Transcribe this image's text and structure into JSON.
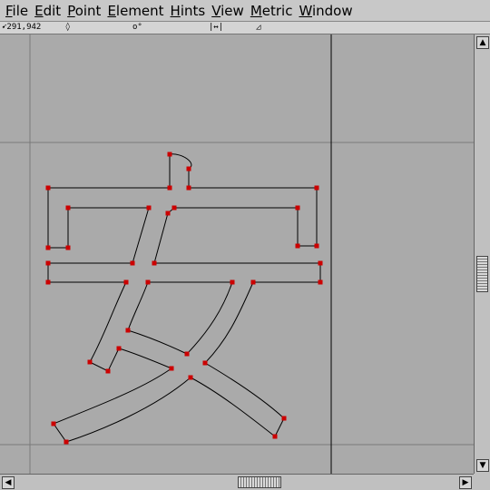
{
  "menubar": {
    "items": [
      {
        "u": "F",
        "rest": "ile"
      },
      {
        "u": "E",
        "rest": "dit"
      },
      {
        "u": "P",
        "rest": "oint"
      },
      {
        "u": "E",
        "rest": "lement"
      },
      {
        "u": "H",
        "rest": "ints"
      },
      {
        "u": "V",
        "rest": "iew"
      },
      {
        "u": "M",
        "rest": "etric"
      },
      {
        "u": "W",
        "rest": "indow"
      }
    ]
  },
  "infobar": {
    "coords": "291,942",
    "symbol_point": "◊",
    "symbol_origin": "o°",
    "symbol_distance": "|↔|",
    "symbol_angle": "◿"
  },
  "colors": {
    "canvas_bg": "#aaaaaa",
    "outline": "#000000",
    "point": "#cc0000",
    "guide": "#7a7a7a",
    "advance_line": "#000000"
  },
  "icons": {
    "scroll_up": "triangle-up-icon",
    "scroll_down": "triangle-down-icon",
    "scroll_left": "triangle-left-icon",
    "scroll_right": "triangle-right-icon"
  }
}
